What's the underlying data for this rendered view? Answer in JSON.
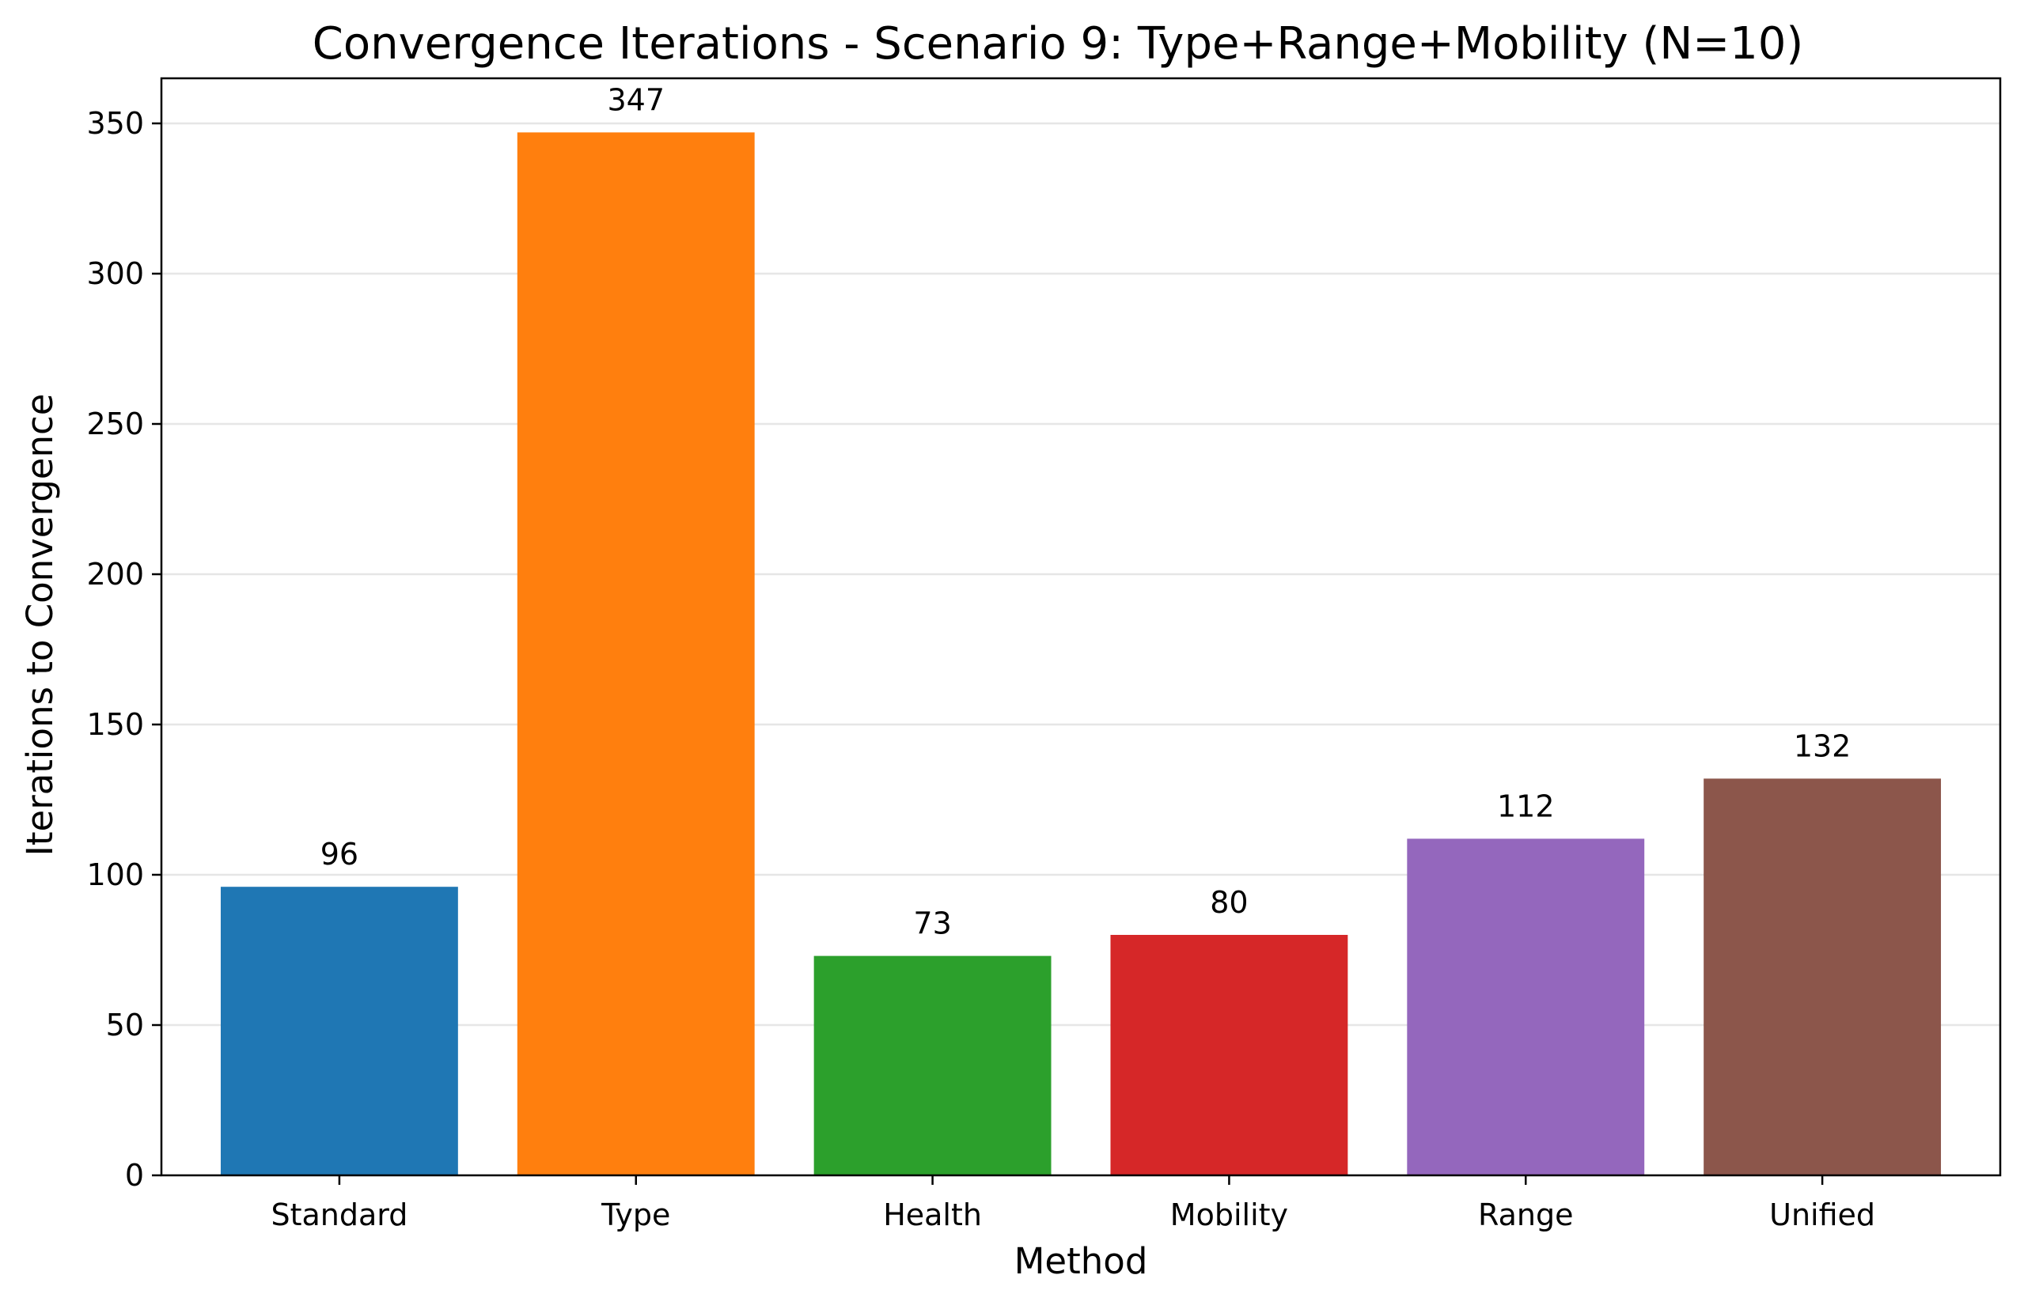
{
  "chart_data": {
    "type": "bar",
    "title": "Convergence Iterations - Scenario 9: Type+Range+Mobility (N=10)",
    "xlabel": "Method",
    "ylabel": "Iterations to Convergence",
    "categories": [
      "Standard",
      "Type",
      "Health",
      "Mobility",
      "Range",
      "Unified"
    ],
    "values": [
      96,
      347,
      73,
      80,
      112,
      132
    ],
    "value_labels": [
      "96",
      "347",
      "73",
      "80",
      "112",
      "132"
    ],
    "colors": [
      "#1f77b4",
      "#ff7f0e",
      "#2ca02c",
      "#d62728",
      "#9467bd",
      "#8c564b"
    ],
    "ylim": [
      0,
      365
    ],
    "yticks": [
      0,
      50,
      100,
      150,
      200,
      250,
      300,
      350
    ],
    "ytick_labels": [
      "0",
      "50",
      "100",
      "150",
      "200",
      "250",
      "300",
      "350"
    ],
    "grid": "horizontal",
    "legend": "none"
  }
}
